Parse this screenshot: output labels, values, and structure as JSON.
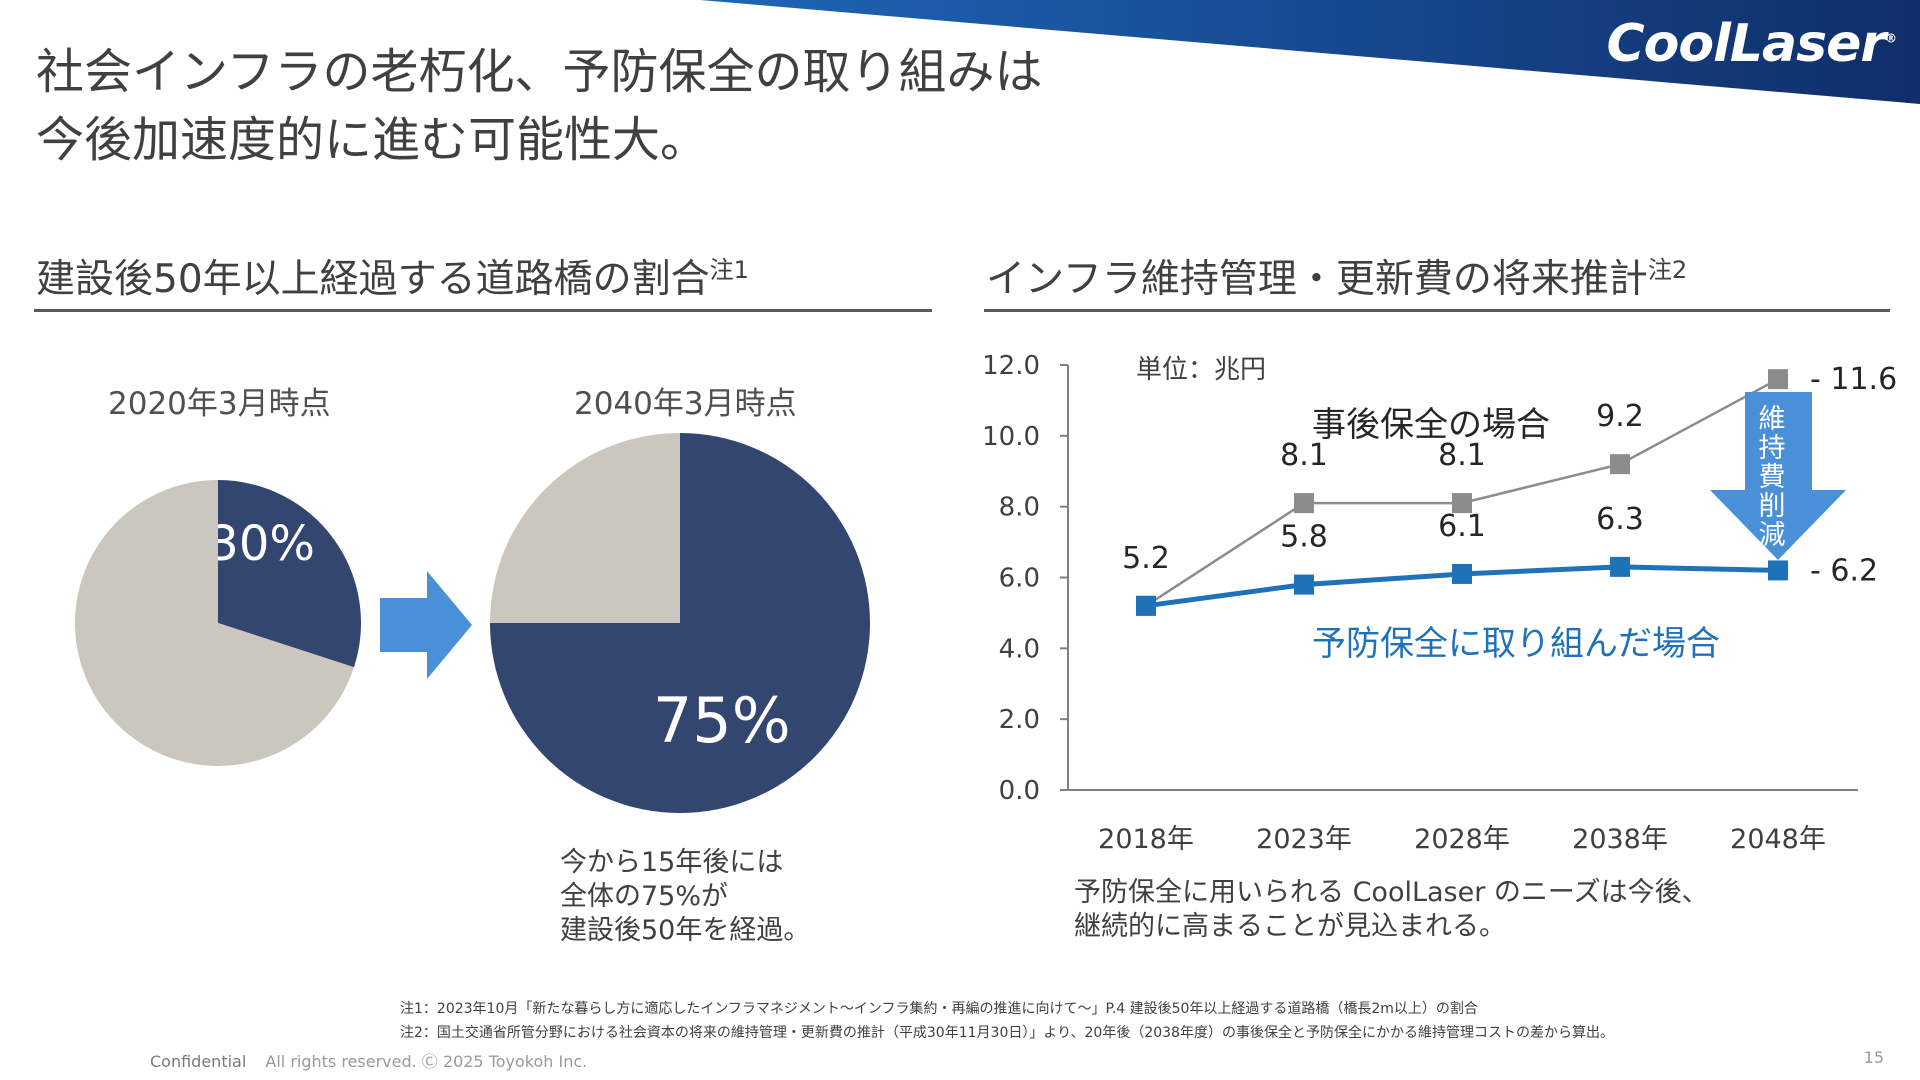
{
  "brand": {
    "logo_text": "CoolLaser",
    "colors": {
      "navy": "#334670",
      "gray": "#cbc7bf",
      "blue": "#1f72b8",
      "arrow": "#4a90d9",
      "line_gray": "#8c8c8c"
    }
  },
  "slide": {
    "title_line1": "社会インフラの老朽化、予防保全の取り組みは",
    "title_line2": "今後加速度的に進む可能性大。",
    "page_number": "15"
  },
  "left_section": {
    "heading": "建設後50年以上経過する道路橋の割合",
    "heading_note": "注1",
    "note_lines": [
      "今から15年後には",
      "全体の75%が",
      "建設後50年を経過。"
    ]
  },
  "right_section": {
    "heading": "インフラ維持管理・更新費の将来推計",
    "heading_note": "注2",
    "note_lines": [
      "予防保全に用いられる CoolLaser のニーズは今後、",
      "継続的に高まることが見込まれる。"
    ]
  },
  "chart_data": [
    {
      "type": "pie",
      "title": "2020年3月時点",
      "slices": [
        {
          "value": 30,
          "label": "30%",
          "color": "#334670"
        },
        {
          "value": 70,
          "label": "",
          "color": "#cbc7bf"
        }
      ]
    },
    {
      "type": "pie",
      "title": "2040年3月時点",
      "slices": [
        {
          "value": 75,
          "label": "75%",
          "color": "#334670"
        },
        {
          "value": 25,
          "label": "",
          "color": "#cbc7bf"
        }
      ]
    },
    {
      "type": "line",
      "unit_label": "単位：兆円",
      "categories": [
        "2018年",
        "2023年",
        "2028年",
        "2038年",
        "2048年"
      ],
      "ylim": [
        0,
        12
      ],
      "y_ticks": [
        "0.0",
        "2.0",
        "4.0",
        "6.0",
        "8.0",
        "10.0",
        "12.0"
      ],
      "series": [
        {
          "name": "事後保全の場合",
          "values": [
            5.2,
            8.1,
            8.1,
            9.2,
            11.6
          ],
          "labels": [
            "5.2",
            "8.1",
            "8.1",
            "9.2",
            "11.6"
          ],
          "color": "#8c8c8c"
        },
        {
          "name": "予防保全に取り組んだ場合",
          "values": [
            5.2,
            5.8,
            6.1,
            6.3,
            6.2
          ],
          "labels": [
            "",
            "5.8",
            "6.1",
            "6.3",
            "6.2"
          ],
          "color": "#1f72b8"
        }
      ],
      "annotation": {
        "text": "維持費削減",
        "chars": [
          "維",
          "持",
          "費",
          "削",
          "減"
        ]
      }
    }
  ],
  "footnotes": [
    "注1：2023年10月「新たな暮らし方に適応したインフラマネジメント〜インフラ集約・再編の推進に向けて〜」P.4 建設後50年以上経過する道路橋（橋長2m以上）の割合",
    "注2：国土交通省所管分野における社会資本の将来の維持管理・更新費の推計（平成30年11月30日）」より、20年後（2038年度）の事後保全と予防保全にかかる維持管理コストの差から算出。"
  ],
  "footer": {
    "confidential": "Confidential",
    "rights": "All rights reserved. Ⓒ 2025 Toyokoh Inc."
  }
}
